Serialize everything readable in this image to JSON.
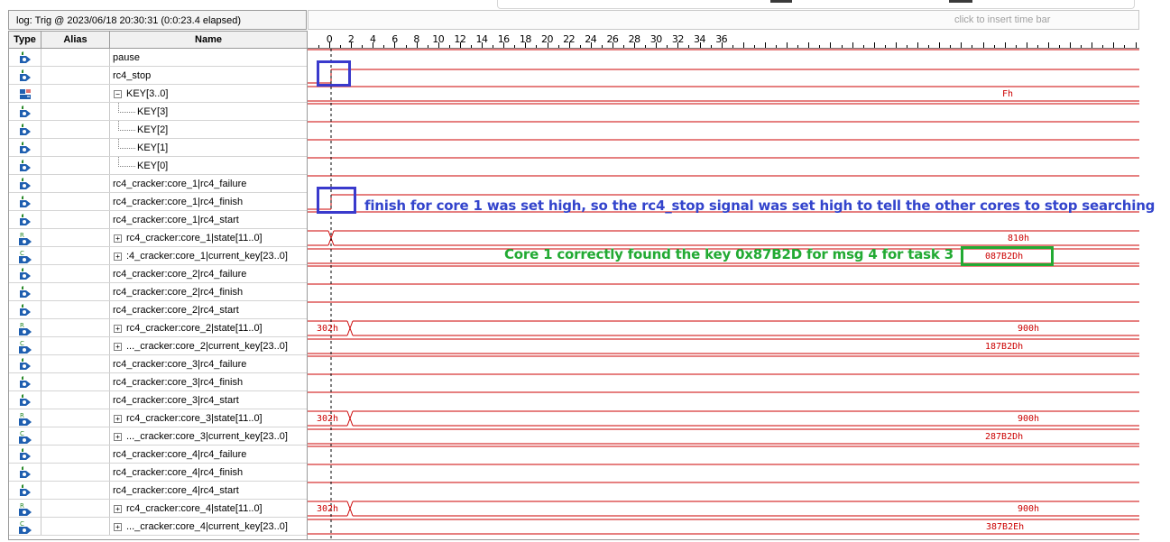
{
  "log_label": "log: Trig @ 2023/06/18 20:30:31 (0:0:23.4 elapsed)",
  "timebar_hint": "click to insert time bar",
  "columns": {
    "type": "Type",
    "alias": "Alias",
    "name": "Name"
  },
  "ruler_ticks": [
    "0",
    "2",
    "4",
    "6",
    "8",
    "10",
    "12",
    "14",
    "16",
    "18",
    "20",
    "22",
    "24",
    "26",
    "28",
    "30",
    "32",
    "34",
    "36"
  ],
  "signals": [
    {
      "name": "pause",
      "icon": "input-pin-icon"
    },
    {
      "name": "rc4_stop",
      "icon": "input-pin-icon"
    },
    {
      "name": "KEY[3..0]",
      "icon": "bus-pin-icon",
      "expander": "−",
      "value": "Fh"
    },
    {
      "name": "KEY[3]",
      "icon": "input-pin-icon"
    },
    {
      "name": "KEY[2]",
      "icon": "input-pin-icon"
    },
    {
      "name": "KEY[1]",
      "icon": "input-pin-icon"
    },
    {
      "name": "KEY[0]",
      "icon": "input-pin-icon"
    },
    {
      "name": "rc4_cracker:core_1|rc4_failure",
      "icon": "input-pin-icon"
    },
    {
      "name": "rc4_cracker:core_1|rc4_finish",
      "icon": "input-pin-icon"
    },
    {
      "name": "rc4_cracker:core_1|rc4_start",
      "icon": "input-pin-icon"
    },
    {
      "name": "rc4_cracker:core_1|state[11..0]",
      "icon": "register-bus-icon",
      "expander": "+",
      "value": "810h"
    },
    {
      "name": ":4_cracker:core_1|current_key[23..0]",
      "icon": "counter-bus-icon",
      "expander": "+",
      "value": "087B2Dh"
    },
    {
      "name": "rc4_cracker:core_2|rc4_failure",
      "icon": "input-pin-icon"
    },
    {
      "name": "rc4_cracker:core_2|rc4_finish",
      "icon": "input-pin-icon"
    },
    {
      "name": "rc4_cracker:core_2|rc4_start",
      "icon": "input-pin-icon"
    },
    {
      "name": "rc4_cracker:core_2|state[11..0]",
      "icon": "register-bus-icon",
      "expander": "+",
      "value_before": "302h",
      "value": "900h"
    },
    {
      "name": "..._cracker:core_2|current_key[23..0]",
      "icon": "counter-bus-icon",
      "expander": "+",
      "value": "187B2Dh"
    },
    {
      "name": "rc4_cracker:core_3|rc4_failure",
      "icon": "input-pin-icon"
    },
    {
      "name": "rc4_cracker:core_3|rc4_finish",
      "icon": "input-pin-icon"
    },
    {
      "name": "rc4_cracker:core_3|rc4_start",
      "icon": "input-pin-icon"
    },
    {
      "name": "rc4_cracker:core_3|state[11..0]",
      "icon": "register-bus-icon",
      "expander": "+",
      "value_before": "302h",
      "value": "900h"
    },
    {
      "name": "..._cracker:core_3|current_key[23..0]",
      "icon": "counter-bus-icon",
      "expander": "+",
      "value": "287B2Dh"
    },
    {
      "name": "rc4_cracker:core_4|rc4_failure",
      "icon": "input-pin-icon"
    },
    {
      "name": "rc4_cracker:core_4|rc4_finish",
      "icon": "input-pin-icon"
    },
    {
      "name": "rc4_cracker:core_4|rc4_start",
      "icon": "input-pin-icon"
    },
    {
      "name": "rc4_cracker:core_4|state[11..0]",
      "icon": "register-bus-icon",
      "expander": "+",
      "value_before": "302h",
      "value": "900h"
    },
    {
      "name": "..._cracker:core_4|current_key[23..0]",
      "icon": "counter-bus-icon",
      "expander": "+",
      "value": "387B2Eh"
    }
  ],
  "annotations": {
    "finish_note": "finish for core 1 was set high, so the rc4_stop signal was set high to tell the other cores to stop searching",
    "found_note": "Core 1 correctly found the key 0x87B2D for msg 4 for task 3"
  },
  "colors": {
    "waveform": "#cc0000",
    "annotation_blue": "#3344cc",
    "annotation_green": "#22aa33",
    "highlight_box_blue": "#3a3acc",
    "highlight_box_green": "#22aa33"
  }
}
